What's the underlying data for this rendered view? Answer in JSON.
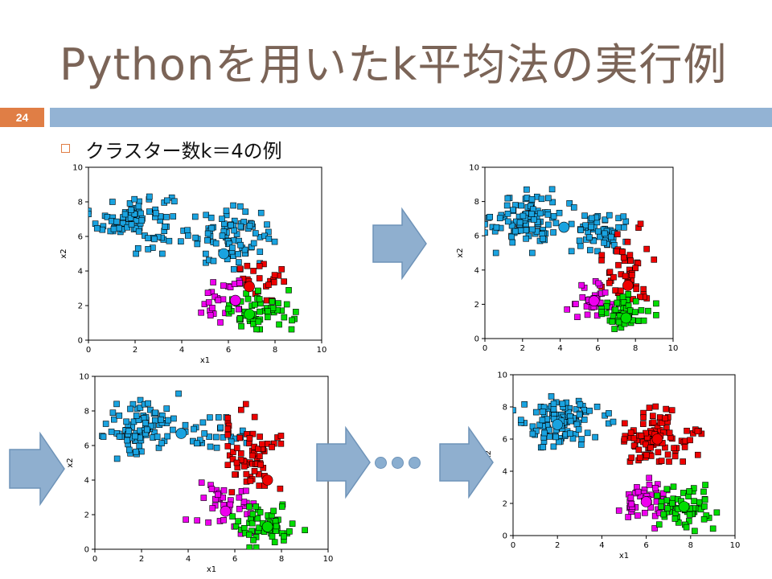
{
  "slide": {
    "title": "Pythonを用いたk平均法の実行例",
    "page_number": "24",
    "bullet": "クラスター数k＝4の例",
    "accent_color": "#e07e45",
    "bar_color": "#93b3d4",
    "title_color": "#7b6457"
  },
  "chart_data": [
    {
      "type": "scatter",
      "xlabel": "x1",
      "ylabel": "x2",
      "xlim": [
        0,
        10
      ],
      "ylim": [
        0,
        10
      ],
      "xticks": [
        "0",
        "2",
        "4",
        "6",
        "8",
        "10"
      ],
      "yticks": [
        "0",
        "2",
        "4",
        "6",
        "8",
        "10"
      ],
      "centroids": [
        {
          "color": "#1aa3e0",
          "x": 5.8,
          "y": 5.0
        },
        {
          "color": "#ee0000",
          "x": 6.9,
          "y": 3.1
        },
        {
          "color": "#ee00ee",
          "x": 6.3,
          "y": 2.3
        },
        {
          "color": "#00dd00",
          "x": 6.9,
          "y": 1.5
        }
      ],
      "clusters": [
        {
          "color": "#1aa3e0",
          "cx": 2.0,
          "cy": 7.0,
          "sx": 0.8,
          "sy": 0.8,
          "n": 95,
          "xr": [
            0,
            4.6
          ],
          "yr": [
            5,
            9
          ]
        },
        {
          "color": "#1aa3e0",
          "cx": 6.1,
          "cy": 6.0,
          "sx": 0.9,
          "sy": 0.8,
          "n": 85,
          "xr": [
            4.1,
            8.4
          ],
          "yr": [
            4.1,
            8
          ]
        },
        {
          "color": "#ee0000",
          "cx": 7.6,
          "cy": 3.3,
          "sx": 0.7,
          "sy": 0.55,
          "n": 24,
          "xr": [
            6.5,
            9.3
          ],
          "yr": [
            2.3,
            4.4
          ]
        },
        {
          "color": "#ee00ee",
          "cx": 5.6,
          "cy": 2.4,
          "sx": 0.7,
          "sy": 0.6,
          "n": 24,
          "xr": [
            4.0,
            6.6
          ],
          "yr": [
            0.9,
            3.7
          ]
        },
        {
          "color": "#00dd00",
          "cx": 7.3,
          "cy": 1.6,
          "sx": 0.75,
          "sy": 0.6,
          "n": 60,
          "xr": [
            6.0,
            9.1
          ],
          "yr": [
            0.1,
            3.0
          ]
        }
      ]
    },
    {
      "type": "scatter",
      "xlabel": "",
      "ylabel": "x2",
      "xlim": [
        0,
        10
      ],
      "ylim": [
        0,
        10
      ],
      "xticks": [
        "0",
        "2",
        "4",
        "6",
        "8",
        "10"
      ],
      "yticks": [
        "0",
        "2",
        "4",
        "6",
        "8",
        "10"
      ],
      "centroids": [
        {
          "color": "#1aa3e0",
          "x": 4.2,
          "y": 6.5
        },
        {
          "color": "#ee0000",
          "x": 7.6,
          "y": 3.1
        },
        {
          "color": "#ee00ee",
          "x": 5.8,
          "y": 2.2
        },
        {
          "color": "#00dd00",
          "x": 7.5,
          "y": 1.2
        }
      ],
      "clusters": [
        {
          "color": "#1aa3e0",
          "cx": 2.2,
          "cy": 7.0,
          "sx": 0.9,
          "sy": 0.8,
          "n": 100,
          "xr": [
            0,
            5.2
          ],
          "yr": [
            5,
            9.2
          ]
        },
        {
          "color": "#1aa3e0",
          "cx": 6.2,
          "cy": 6.2,
          "sx": 0.75,
          "sy": 0.65,
          "n": 60,
          "xr": [
            4.6,
            7.9
          ],
          "yr": [
            5.1,
            8.3
          ]
        },
        {
          "color": "#ee0000",
          "cx": 7.4,
          "cy": 4.0,
          "sx": 0.7,
          "sy": 1.0,
          "n": 50,
          "xr": [
            6.2,
            9.2
          ],
          "yr": [
            2.3,
            6.8
          ]
        },
        {
          "color": "#ee00ee",
          "cx": 5.7,
          "cy": 2.2,
          "sx": 0.6,
          "sy": 0.6,
          "n": 32,
          "xr": [
            4.1,
            6.7
          ],
          "yr": [
            0.9,
            3.8
          ]
        },
        {
          "color": "#00dd00",
          "cx": 7.3,
          "cy": 1.5,
          "sx": 0.75,
          "sy": 0.55,
          "n": 55,
          "xr": [
            6.2,
            9.1
          ],
          "yr": [
            0.2,
            2.6
          ]
        }
      ]
    },
    {
      "type": "scatter",
      "xlabel": "x1",
      "ylabel": "x2",
      "xlim": [
        0,
        10
      ],
      "ylim": [
        0,
        10
      ],
      "xticks": [
        "0",
        "2",
        "4",
        "6",
        "8",
        "10"
      ],
      "yticks": [
        "0",
        "2",
        "4",
        "6",
        "8",
        "10"
      ],
      "centroids": [
        {
          "color": "#1aa3e0",
          "x": 3.7,
          "y": 6.7
        },
        {
          "color": "#ee0000",
          "x": 7.4,
          "y": 4.0
        },
        {
          "color": "#ee00ee",
          "x": 5.6,
          "y": 2.2
        },
        {
          "color": "#00dd00",
          "x": 7.4,
          "y": 1.3
        }
      ],
      "clusters": [
        {
          "color": "#1aa3e0",
          "cx": 2.0,
          "cy": 7.0,
          "sx": 0.85,
          "sy": 0.8,
          "n": 100,
          "xr": [
            0,
            4.6
          ],
          "yr": [
            5.1,
            9
          ]
        },
        {
          "color": "#1aa3e0",
          "cx": 5.3,
          "cy": 6.6,
          "sx": 0.6,
          "sy": 0.6,
          "n": 28,
          "xr": [
            4.2,
            6.5
          ],
          "yr": [
            5.3,
            8.3
          ]
        },
        {
          "color": "#ee0000",
          "cx": 6.6,
          "cy": 5.5,
          "sx": 0.7,
          "sy": 1.1,
          "n": 70,
          "xr": [
            5.7,
            8.6
          ],
          "yr": [
            3.3,
            8.7
          ]
        },
        {
          "color": "#ee00ee",
          "cx": 5.6,
          "cy": 2.3,
          "sx": 0.7,
          "sy": 0.8,
          "n": 40,
          "xr": [
            3.9,
            7.0
          ],
          "yr": [
            0.6,
            4.0
          ]
        },
        {
          "color": "#00dd00",
          "cx": 7.4,
          "cy": 1.4,
          "sx": 0.75,
          "sy": 0.6,
          "n": 58,
          "xr": [
            5.9,
            9.2
          ],
          "yr": [
            0.1,
            3.1
          ]
        }
      ]
    },
    {
      "type": "scatter",
      "xlabel": "x1",
      "ylabel": "x2",
      "xlim": [
        0,
        10
      ],
      "ylim": [
        0,
        10
      ],
      "xticks": [
        "0",
        "2",
        "4",
        "6",
        "8",
        "10"
      ],
      "yticks": [
        "0",
        "2",
        "4",
        "6",
        "8",
        "10"
      ],
      "centroids": [
        {
          "color": "#1aa3e0",
          "x": 2.0,
          "y": 6.9
        },
        {
          "color": "#ee0000",
          "x": 6.5,
          "y": 6.0
        },
        {
          "color": "#ee00ee",
          "x": 6.0,
          "y": 2.1
        },
        {
          "color": "#00dd00",
          "x": 7.7,
          "y": 1.8
        }
      ],
      "clusters": [
        {
          "color": "#1aa3e0",
          "cx": 2.0,
          "cy": 7.0,
          "sx": 0.9,
          "sy": 0.8,
          "n": 110,
          "xr": [
            0,
            5.1
          ],
          "yr": [
            5.1,
            9
          ]
        },
        {
          "color": "#ee0000",
          "cx": 6.5,
          "cy": 6.0,
          "sx": 0.75,
          "sy": 0.8,
          "n": 100,
          "xr": [
            4.7,
            8.9
          ],
          "yr": [
            4.6,
            8.7
          ]
        },
        {
          "color": "#ee00ee",
          "cx": 6.0,
          "cy": 2.2,
          "sx": 0.65,
          "sy": 0.75,
          "n": 45,
          "xr": [
            4.6,
            7.4
          ],
          "yr": [
            0.3,
            4.0
          ]
        },
        {
          "color": "#00dd00",
          "cx": 7.8,
          "cy": 1.7,
          "sx": 0.65,
          "sy": 0.65,
          "n": 60,
          "xr": [
            6.3,
            9.2
          ],
          "yr": [
            0.1,
            3.4
          ]
        }
      ]
    }
  ]
}
